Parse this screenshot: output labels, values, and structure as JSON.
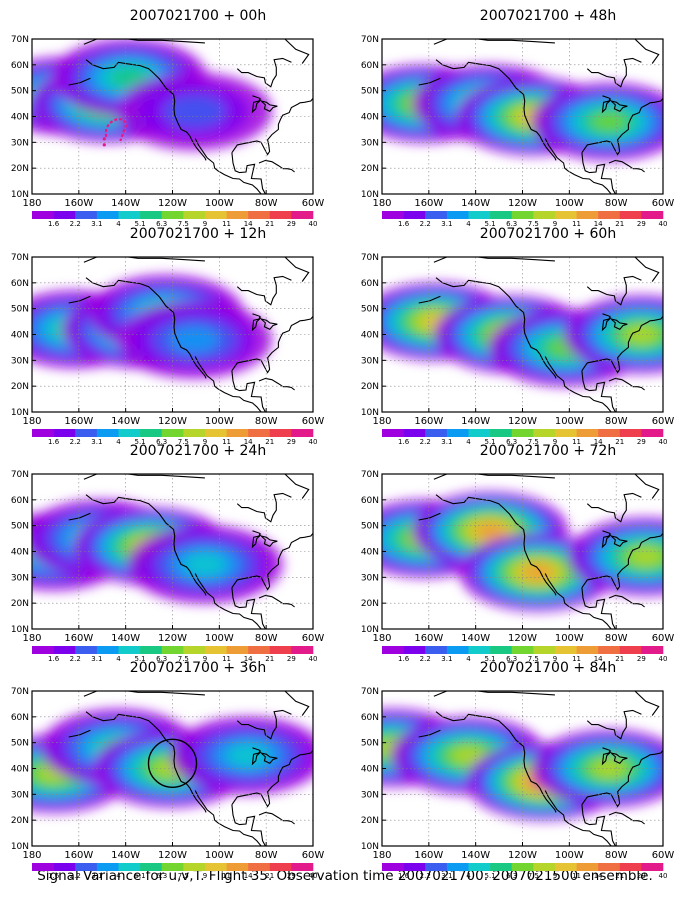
{
  "figure": {
    "caption": "Signal Variance for u,v,T. Flight 35. Observation time 2007021700. 2007021500 ensemble.",
    "colors": {
      "land": "#ffffff",
      "coastline": "#000000",
      "grid": "#888888",
      "contour_bins": [
        "#9e00df",
        "#7a00ee",
        "#3c5ef0",
        "#0b9bf2",
        "#12cbcb",
        "#18c883",
        "#72d530",
        "#b5d52a",
        "#e5c332",
        "#ee9c35",
        "#f06f42",
        "#ef3f4f",
        "#e21a8a"
      ],
      "circle": "#000000",
      "marker": "#e21a8a"
    },
    "colorbar": {
      "labels": [
        "1.6",
        "2.2",
        "3.1",
        "4",
        "5.1",
        "6.3",
        "7.5",
        "9",
        "11",
        "14",
        "21",
        "29",
        "40"
      ]
    },
    "x_ticks": [
      "180",
      "160W",
      "140W",
      "120W",
      "100W",
      "80W",
      "60W"
    ],
    "y_ticks": [
      "10N",
      "20N",
      "30N",
      "40N",
      "50N",
      "60N",
      "70N"
    ],
    "panels": [
      {
        "title": "2007021700 + 00h",
        "column": 0,
        "row": 0,
        "overlay": "marker",
        "chart_data": {
          "type": "heatmap",
          "xlim": [
            -190,
            -60
          ],
          "ylim": [
            10,
            70
          ],
          "blobs": [
            {
              "lon": -175,
              "lat": 48,
              "level": 0.5
            },
            {
              "lon": -155,
              "lat": 45,
              "level": 0.6
            },
            {
              "lon": -145,
              "lat": 55,
              "level": 0.4
            },
            {
              "lon": -115,
              "lat": 42,
              "level": 0.2
            }
          ]
        }
      },
      {
        "title": "2007021700 + 12h",
        "column": 0,
        "row": 1,
        "overlay": "",
        "chart_data": {
          "type": "heatmap",
          "xlim": [
            -190,
            -60
          ],
          "ylim": [
            10,
            70
          ],
          "blobs": [
            {
              "lon": -170,
              "lat": 42,
              "level": 0.4
            },
            {
              "lon": -140,
              "lat": 42,
              "level": 0.6
            },
            {
              "lon": -128,
              "lat": 48,
              "level": 0.45
            },
            {
              "lon": -115,
              "lat": 38,
              "level": 0.25
            }
          ]
        }
      },
      {
        "title": "2007021700 + 24h",
        "column": 0,
        "row": 2,
        "overlay": "",
        "chart_data": {
          "type": "heatmap",
          "xlim": [
            -190,
            -60
          ],
          "ylim": [
            10,
            70
          ],
          "blobs": [
            {
              "lon": -180,
              "lat": 40,
              "level": 0.45
            },
            {
              "lon": -158,
              "lat": 45,
              "level": 0.4
            },
            {
              "lon": -135,
              "lat": 42,
              "level": 0.65
            },
            {
              "lon": -110,
              "lat": 35,
              "level": 0.35
            }
          ]
        }
      },
      {
        "title": "2007021700 + 36h",
        "column": 0,
        "row": 3,
        "overlay": "circle",
        "chart_data": {
          "type": "heatmap",
          "xlim": [
            -190,
            -60
          ],
          "ylim": [
            10,
            70
          ],
          "blobs": [
            {
              "lon": -180,
              "lat": 38,
              "level": 0.55
            },
            {
              "lon": -150,
              "lat": 48,
              "level": 0.45
            },
            {
              "lon": -126,
              "lat": 40,
              "level": 0.6
            },
            {
              "lon": -90,
              "lat": 45,
              "level": 0.35
            }
          ]
        }
      },
      {
        "title": "2007021700 + 48h",
        "column": 1,
        "row": 0,
        "overlay": "",
        "chart_data": {
          "type": "heatmap",
          "xlim": [
            -190,
            -60
          ],
          "ylim": [
            10,
            70
          ],
          "blobs": [
            {
              "lon": -170,
              "lat": 45,
              "level": 0.6
            },
            {
              "lon": -140,
              "lat": 45,
              "level": 0.5
            },
            {
              "lon": -120,
              "lat": 40,
              "level": 0.65
            },
            {
              "lon": -85,
              "lat": 38,
              "level": 0.5
            }
          ]
        }
      },
      {
        "title": "2007021700 + 60h",
        "column": 1,
        "row": 1,
        "overlay": "",
        "chart_data": {
          "type": "heatmap",
          "xlim": [
            -190,
            -60
          ],
          "ylim": [
            10,
            70
          ],
          "blobs": [
            {
              "lon": -165,
              "lat": 45,
              "level": 0.7
            },
            {
              "lon": -130,
              "lat": 40,
              "level": 0.7
            },
            {
              "lon": -105,
              "lat": 35,
              "level": 0.5
            },
            {
              "lon": -70,
              "lat": 40,
              "level": 0.6
            }
          ]
        }
      },
      {
        "title": "2007021700 + 72h",
        "column": 1,
        "row": 2,
        "overlay": "",
        "chart_data": {
          "type": "heatmap",
          "xlim": [
            -190,
            -60
          ],
          "ylim": [
            10,
            70
          ],
          "blobs": [
            {
              "lon": -170,
              "lat": 45,
              "level": 0.55
            },
            {
              "lon": -140,
              "lat": 48,
              "level": 0.75
            },
            {
              "lon": -118,
              "lat": 32,
              "level": 0.75
            },
            {
              "lon": -68,
              "lat": 38,
              "level": 0.6
            }
          ]
        }
      },
      {
        "title": "2007021700 + 84h",
        "column": 1,
        "row": 3,
        "overlay": "",
        "chart_data": {
          "type": "heatmap",
          "xlim": [
            -190,
            -60
          ],
          "ylim": [
            10,
            70
          ],
          "blobs": [
            {
              "lon": -185,
              "lat": 48,
              "level": 0.6
            },
            {
              "lon": -150,
              "lat": 45,
              "level": 0.6
            },
            {
              "lon": -115,
              "lat": 35,
              "level": 0.85
            },
            {
              "lon": -85,
              "lat": 40,
              "level": 0.6
            }
          ]
        }
      }
    ]
  }
}
